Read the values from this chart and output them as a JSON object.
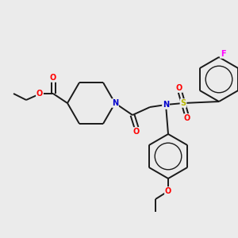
{
  "background_color": "#ebebeb",
  "bond_color": "#1a1a1a",
  "atom_colors": {
    "O": "#ff0000",
    "N": "#0000cc",
    "S": "#b8b800",
    "F": "#ff00ff"
  },
  "figsize": [
    3.0,
    3.0
  ],
  "dpi": 100
}
